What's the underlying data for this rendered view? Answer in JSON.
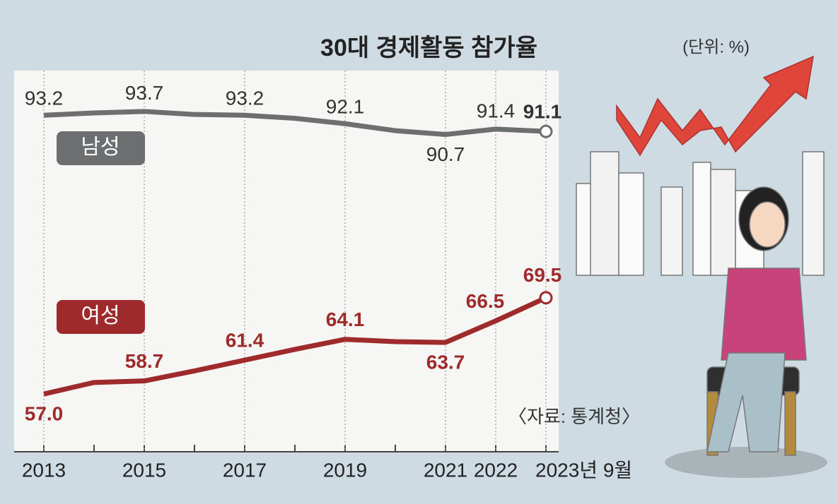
{
  "chart_data": {
    "type": "line",
    "title": "30대 경제활동 참가율",
    "subtitle": "(단위: %)",
    "source": "〈자료: 통계청〉",
    "categories": [
      "2013",
      null,
      "2015",
      null,
      "2017",
      null,
      "2019",
      null,
      "2021",
      "2022",
      "2023년 9월"
    ],
    "series": [
      {
        "name": "남성",
        "color": "#6d6e70",
        "values": [
          93.2,
          93.5,
          93.7,
          93.3,
          93.2,
          92.8,
          92.1,
          91.2,
          90.7,
          91.4,
          91.1
        ],
        "value_labels": [
          "93.2",
          null,
          "93.7",
          null,
          "93.2",
          null,
          "92.1",
          null,
          "90.7",
          "91.4",
          "91.1"
        ]
      },
      {
        "name": "여성",
        "color": "#9e2a2b",
        "values": [
          57.0,
          58.5,
          58.7,
          60.0,
          61.4,
          62.8,
          64.1,
          63.8,
          63.7,
          66.5,
          69.5
        ],
        "value_labels": [
          "57.0",
          null,
          "58.7",
          null,
          "61.4",
          null,
          "64.1",
          null,
          "63.7",
          "66.5",
          "69.5"
        ]
      }
    ],
    "ylim": [
      49.5,
      99
    ]
  }
}
